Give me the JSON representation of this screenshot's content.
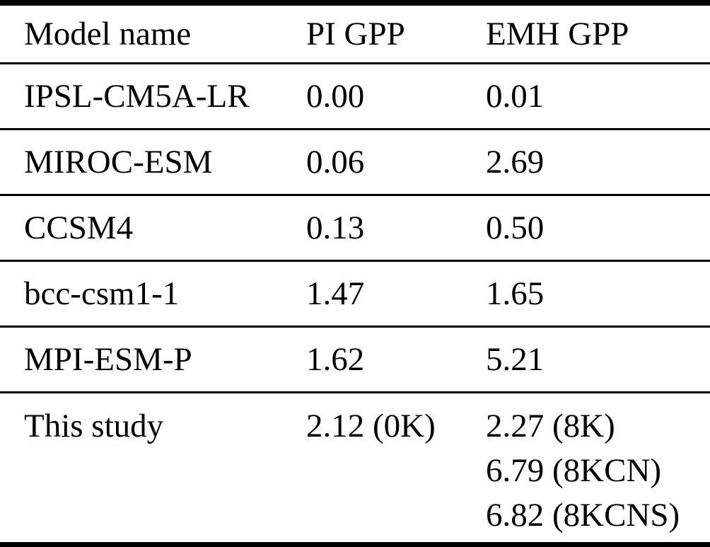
{
  "table": {
    "columns": [
      "Model name",
      "PI GPP",
      "EMH GPP"
    ],
    "rows": [
      {
        "model": "IPSL-CM5A-LR",
        "pi": "0.00",
        "emh": "0.01"
      },
      {
        "model": "MIROC-ESM",
        "pi": "0.06",
        "emh": "2.69"
      },
      {
        "model": "CCSM4",
        "pi": "0.13",
        "emh": "0.50"
      },
      {
        "model": "bcc-csm1-1",
        "pi": "1.47",
        "emh": "1.65"
      },
      {
        "model": "MPI-ESM-P",
        "pi": "1.62",
        "emh": "5.21"
      },
      {
        "model": "This study",
        "pi": "2.12 (0K)",
        "emh_lines": [
          "2.27 (8K)",
          "6.79 (8KCN)",
          "6.82 (8KCNS)"
        ]
      }
    ]
  },
  "colors": {
    "text": "#000000",
    "rule": "#000000",
    "background": "#ffffff"
  },
  "chart_data": {
    "type": "table",
    "columns": [
      "Model name",
      "PI GPP",
      "EMH GPP"
    ],
    "rows": [
      [
        "IPSL-CM5A-LR",
        "0.00",
        "0.01"
      ],
      [
        "MIROC-ESM",
        "0.06",
        "2.69"
      ],
      [
        "CCSM4",
        "0.13",
        "0.50"
      ],
      [
        "bcc-csm1-1",
        "1.47",
        "1.65"
      ],
      [
        "MPI-ESM-P",
        "1.62",
        "5.21"
      ],
      [
        "This study",
        "2.12 (0K)",
        "2.27 (8K); 6.79 (8KCN); 6.82 (8KCNS)"
      ]
    ]
  }
}
